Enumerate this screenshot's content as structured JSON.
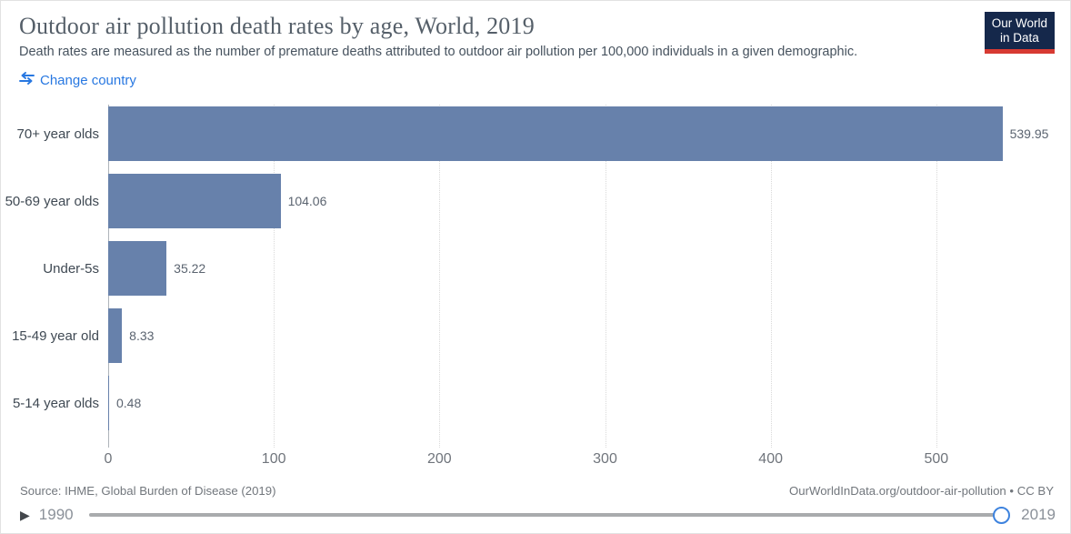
{
  "header": {
    "title": "Outdoor air pollution death rates by age, World, 2019",
    "subtitle": "Death rates are measured as the number of premature deaths attributed to outdoor air pollution per 100,000 individuals in a given demographic.",
    "logo_line1": "Our World",
    "logo_line2": "in Data"
  },
  "controls": {
    "change_country_label": "Change country"
  },
  "chart_data": {
    "type": "bar",
    "orientation": "horizontal",
    "title": "Outdoor air pollution death rates by age, World, 2019",
    "categories": [
      "70+ year olds",
      "50-69 year olds",
      "Under-5s",
      "15-49 year old",
      "5-14 year olds"
    ],
    "values": [
      539.95,
      104.06,
      35.22,
      8.33,
      0.48
    ],
    "value_labels": [
      "539.95",
      "104.06",
      "35.22",
      "8.33",
      "0.48"
    ],
    "xlabel": "",
    "ylabel": "",
    "xlim": [
      0,
      572
    ],
    "xticks": [
      0,
      100,
      200,
      300,
      400,
      500
    ],
    "grid": "vertical-dotted",
    "legend": "none",
    "bar_color": "#6781AB"
  },
  "footer": {
    "source": "Source: IHME, Global Burden of Disease (2019)",
    "attribution": "OurWorldInData.org/outdoor-air-pollution • CC BY"
  },
  "timeline": {
    "play_icon": "▶",
    "start_year": "1990",
    "end_year": "2019"
  },
  "colors": {
    "bar": "#6781AB",
    "accent_blue": "#2878E1",
    "logo_navy": "#15284B",
    "logo_red": "#D73A32",
    "slider_track": "#A9ABAD",
    "slider_handle_ring": "#3E83DE"
  }
}
